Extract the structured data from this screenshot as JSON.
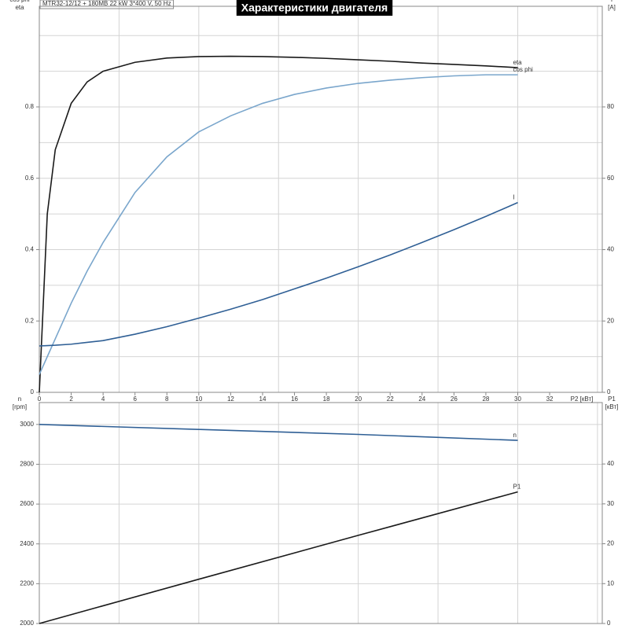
{
  "chart_data": [
    {
      "type": "line",
      "title": "Характеристики двигателя",
      "subtitle": "MTR32-12/12 + 180MB  22 kW  3*400 V, 50 Hz",
      "xlabel": "P2 [кВт]",
      "ylabel": [
        "cos phi",
        "eta"
      ],
      "y2label": [
        "I",
        "[A]"
      ],
      "xlim": [
        0,
        35.3
      ],
      "xticks": [
        0,
        2,
        4,
        6,
        8,
        10,
        12,
        14,
        16,
        18,
        20,
        22,
        24,
        26,
        28,
        30,
        32
      ],
      "xgrid": [
        5,
        10,
        15,
        20,
        25,
        30,
        35
      ],
      "ylim": [
        0,
        1.082
      ],
      "yticks": [
        0,
        0.2,
        0.4,
        0.6,
        0.8
      ],
      "ygrid": [
        0.1,
        0.2,
        0.3,
        0.4,
        0.5,
        0.6,
        0.7,
        0.8,
        0.9,
        1.0
      ],
      "y2lim": [
        0,
        108.2
      ],
      "y2ticks": [
        0,
        20,
        40,
        60,
        80
      ],
      "x": [
        0,
        0.5,
        1,
        2,
        3,
        4,
        6,
        8,
        10,
        12,
        14,
        16,
        18,
        20,
        22,
        24,
        26,
        28,
        30
      ],
      "series": [
        {
          "name": "eta",
          "color": "#1a1a1a",
          "values": [
            0,
            0.5,
            0.68,
            0.81,
            0.87,
            0.9,
            0.925,
            0.937,
            0.941,
            0.942,
            0.941,
            0.939,
            0.936,
            0.932,
            0.928,
            0.923,
            0.919,
            0.915,
            0.91
          ]
        },
        {
          "name": "cos phi",
          "color": "#7aa6cc",
          "values": [
            0.05,
            0.1,
            0.15,
            0.25,
            0.34,
            0.42,
            0.56,
            0.66,
            0.73,
            0.775,
            0.81,
            0.835,
            0.853,
            0.866,
            0.875,
            0.882,
            0.887,
            0.89,
            0.89
          ]
        },
        {
          "name": "I",
          "color": "#2f5f95",
          "axis": "y2",
          "values": [
            13,
            13.1,
            13.2,
            13.5,
            14,
            14.5,
            16.3,
            18.4,
            20.8,
            23.3,
            26,
            29,
            32,
            35.2,
            38.5,
            42,
            45.6,
            49.3,
            53.2
          ]
        }
      ]
    },
    {
      "type": "line",
      "ylabel": [
        "n",
        "[rpm]"
      ],
      "y2label": [
        "P1",
        "[кВт]"
      ],
      "xlim": [
        0,
        35.3
      ],
      "xgrid": [
        5,
        10,
        15,
        20,
        25,
        30,
        35
      ],
      "ylim": [
        2000,
        3110
      ],
      "yticks": [
        2000,
        2200,
        2400,
        2600,
        2800,
        3000
      ],
      "y2lim": [
        0,
        55.4
      ],
      "y2ticks": [
        0,
        10,
        20,
        30,
        40
      ],
      "x": [
        0,
        10,
        20,
        30
      ],
      "series": [
        {
          "name": "n",
          "color": "#2f5f95",
          "values": [
            3000,
            2975,
            2950,
            2920
          ]
        },
        {
          "name": "P1",
          "color": "#1a1a1a",
          "axis": "y2",
          "values": [
            0,
            11.1,
            22.1,
            33
          ]
        }
      ]
    }
  ]
}
